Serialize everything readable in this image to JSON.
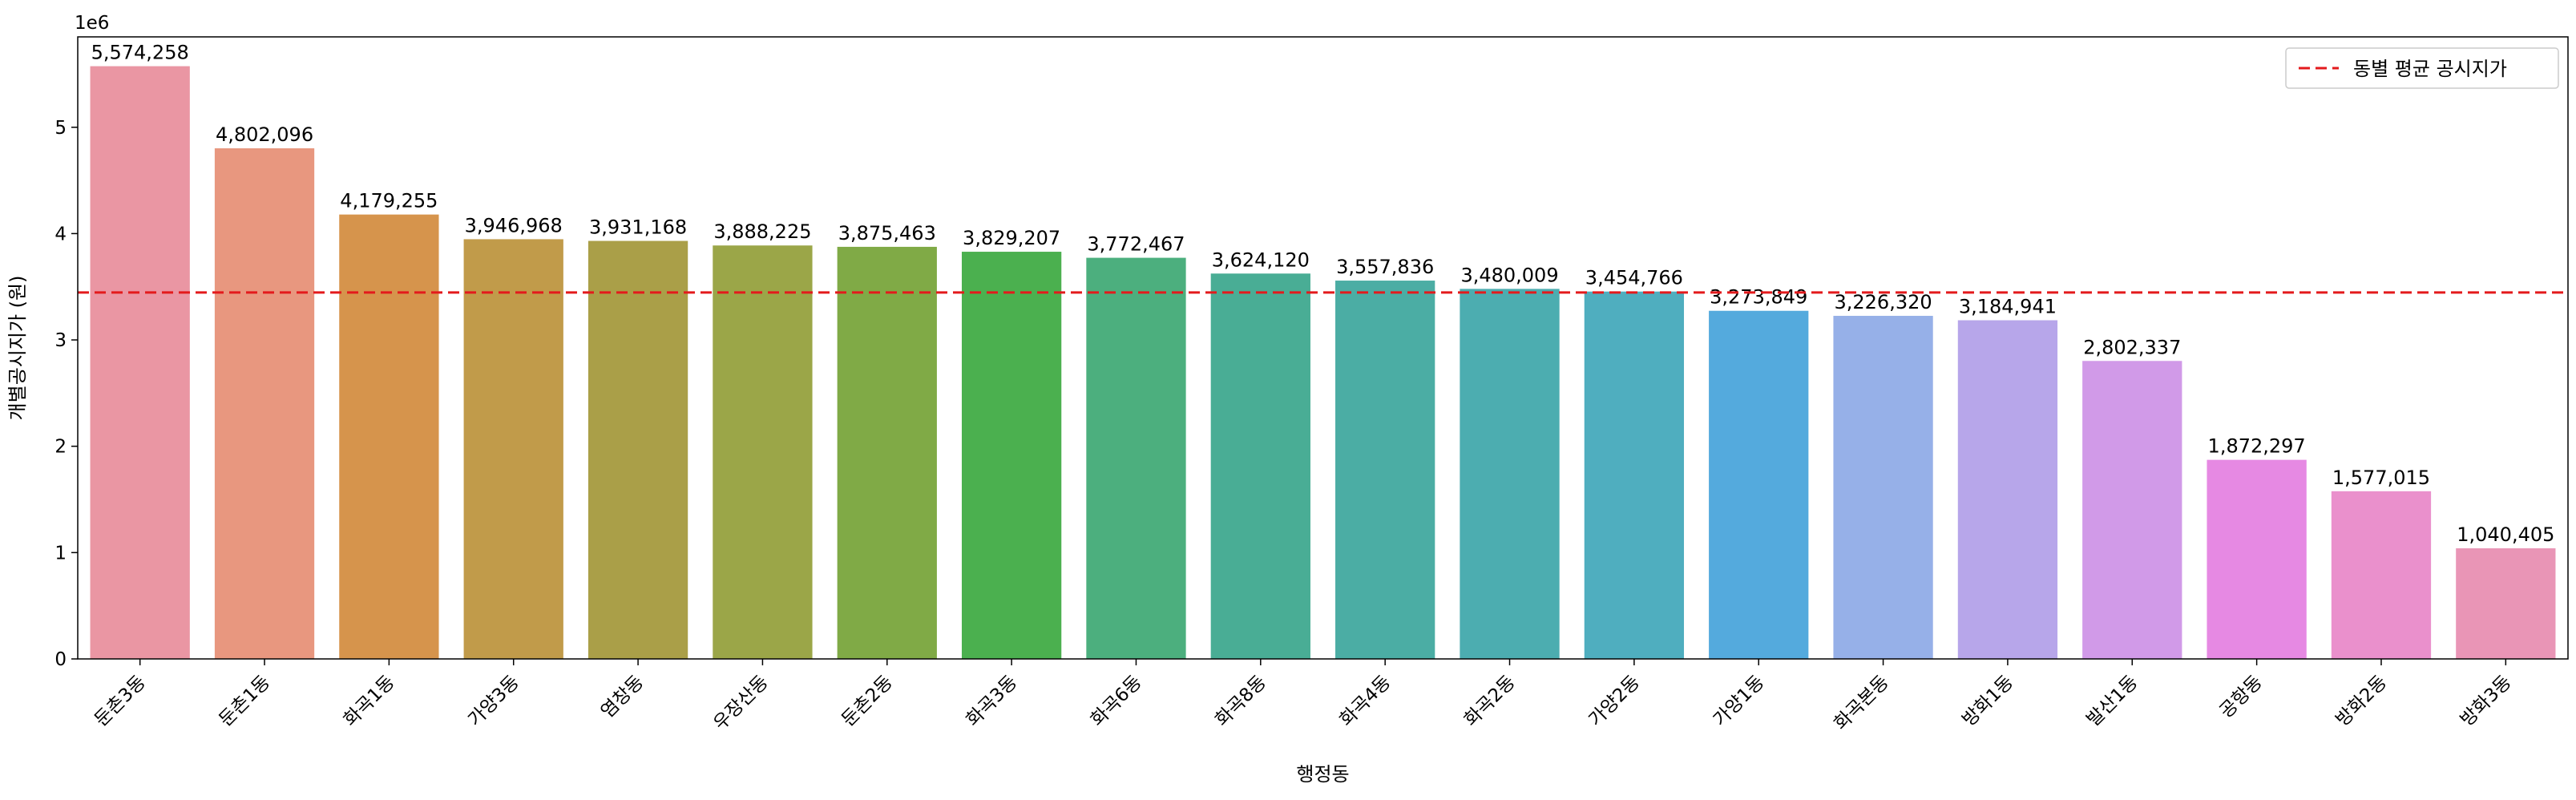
{
  "chart_data": {
    "type": "bar",
    "categories": [
      "둔촌3동",
      "둔촌1동",
      "화곡1동",
      "가양3동",
      "염창동",
      "우장산동",
      "둔촌2동",
      "화곡3동",
      "화곡6동",
      "화곡8동",
      "화곡4동",
      "화곡2동",
      "가양2동",
      "가양1동",
      "화곡본동",
      "방화1동",
      "발산1동",
      "공항동",
      "방화2동",
      "방화3동"
    ],
    "values": [
      5574258,
      4802096,
      4179255,
      3946968,
      3931168,
      3888225,
      3875463,
      3829207,
      3772467,
      3624120,
      3557836,
      3480009,
      3454766,
      3273849,
      3226320,
      3184941,
      2802337,
      1872297,
      1577015,
      1040405
    ],
    "value_labels": [
      "5,574,258",
      "4,802,096",
      "4,179,255",
      "3,946,968",
      "3,931,168",
      "3,888,225",
      "3,875,463",
      "3,829,207",
      "3,772,467",
      "3,624,120",
      "3,557,836",
      "3,480,009",
      "3,454,766",
      "3,273,849",
      "3,226,320",
      "3,184,941",
      "2,802,337",
      "1,872,297",
      "1,577,015",
      "1,040,405"
    ],
    "colors": [
      "#ea96a3",
      "#e8977f",
      "#d6944c",
      "#c19b4a",
      "#aa9f48",
      "#9ba648",
      "#80aa46",
      "#4bb04f",
      "#4caf7e",
      "#49ad95",
      "#4bada4",
      "#4cadb0",
      "#4faebf",
      "#54aadd",
      "#96b0e8",
      "#b7a6ea",
      "#d19ae8",
      "#e689e3",
      "#ea90cc",
      "#e995b6"
    ],
    "mean_line": {
      "value": 3445756,
      "label": "동별 평균 공시지가",
      "color": "#e31a1c"
    },
    "xlabel": "행정동",
    "ylabel": "개별공시지가 (원)",
    "ylim": [
      0,
      5850000
    ],
    "yticks": [
      0,
      1000000,
      2000000,
      3000000,
      4000000,
      5000000
    ],
    "ytick_labels": [
      "0",
      "1",
      "2",
      "3",
      "4",
      "5"
    ],
    "offset_label": "1e6",
    "legend_position": "top-right",
    "grid": false
  }
}
